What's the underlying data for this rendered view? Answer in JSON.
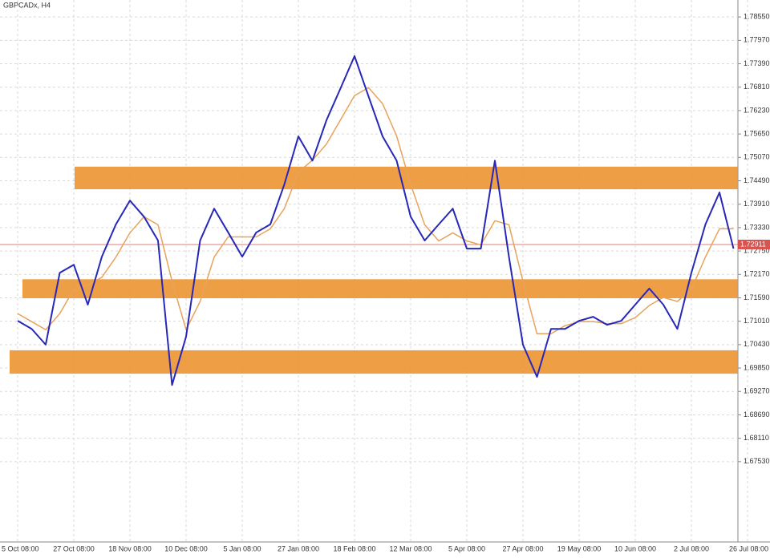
{
  "chart_data": {
    "type": "line",
    "title": "GBPCADx, H4",
    "categories": [
      "5 Oct 08:00",
      null,
      null,
      null,
      "27 Oct 08:00",
      null,
      null,
      null,
      "18 Nov 08:00",
      null,
      null,
      null,
      "10 Dec 08:00",
      null,
      null,
      null,
      "5 Jan 08:00",
      null,
      null,
      null,
      "27 Jan 08:00",
      null,
      null,
      null,
      "18 Feb 08:00",
      null,
      null,
      null,
      "12 Mar 08:00",
      null,
      null,
      null,
      "5 Apr 08:00",
      null,
      null,
      null,
      "27 Apr 08:00",
      null,
      null,
      null,
      "19 May 08:00",
      null,
      null,
      null,
      "10 Jun 08:00",
      null,
      null,
      null,
      "2 Jul 08:00",
      null,
      null,
      null,
      "26 Jul 08:00"
    ],
    "series": [
      {
        "color": "#e8a35a",
        "values": [
          1.712,
          1.71,
          1.708,
          1.712,
          1.718,
          1.719,
          1.721,
          1.726,
          1.732,
          1.736,
          1.734,
          1.72,
          1.708,
          1.715,
          1.726,
          1.731,
          1.731,
          1.731,
          1.733,
          1.738,
          1.747,
          1.75,
          1.754,
          1.76,
          1.766,
          1.768,
          1.764,
          1.756,
          1.744,
          1.734,
          1.73,
          1.732,
          1.73,
          1.729,
          1.735,
          1.734,
          1.72,
          1.707,
          1.707,
          1.709,
          1.71,
          1.71,
          1.7095,
          1.7095,
          1.711,
          1.714,
          1.716,
          1.715,
          1.718,
          1.726,
          1.733,
          1.733,
          null
        ]
      },
      {
        "color": "#2727b8",
        "values": [
          1.7102,
          1.7082,
          1.7043,
          1.7221,
          1.7241,
          1.7142,
          1.7261,
          1.7341,
          1.74,
          1.736,
          1.7301,
          1.6943,
          1.7063,
          1.7301,
          1.738,
          1.7321,
          1.7261,
          1.7321,
          1.7341,
          1.744,
          1.7559,
          1.7499,
          1.7599,
          1.7678,
          1.7758,
          1.7658,
          1.7559,
          1.7499,
          1.736,
          1.7301,
          1.7341,
          1.738,
          1.7281,
          1.7281,
          1.7499,
          1.7261,
          1.7043,
          1.6963,
          1.7082,
          1.7082,
          1.7102,
          1.7112,
          1.7092,
          1.7102,
          1.7142,
          1.7182,
          1.7142,
          1.7082,
          1.7221,
          1.7341,
          1.742,
          1.7281,
          null
        ]
      }
    ],
    "ylim": [
      1.6554,
      1.7897
    ],
    "yticks": [
      {
        "value": 1.7855,
        "label": "1.78550"
      },
      {
        "value": 1.7797,
        "label": "1.77970"
      },
      {
        "value": 1.7739,
        "label": "1.77390"
      },
      {
        "value": 1.7681,
        "label": "1.76810"
      },
      {
        "value": 1.7623,
        "label": "1.76230"
      },
      {
        "value": 1.7565,
        "label": "1.75650"
      },
      {
        "value": 1.7507,
        "label": "1.75070"
      },
      {
        "value": 1.7449,
        "label": "1.74490"
      },
      {
        "value": 1.7391,
        "label": "1.73910"
      },
      {
        "value": 1.7333,
        "label": "1.73330"
      },
      {
        "value": 1.7275,
        "label": "1.72750"
      },
      {
        "value": 1.7217,
        "label": "1.72170"
      },
      {
        "value": 1.7159,
        "label": "1.71590"
      },
      {
        "value": 1.7101,
        "label": "1.71010"
      },
      {
        "value": 1.7043,
        "label": "1.70430"
      },
      {
        "value": 1.6985,
        "label": "1.69850"
      },
      {
        "value": 1.6927,
        "label": "1.69270"
      },
      {
        "value": 1.6869,
        "label": "1.68690"
      },
      {
        "value": 1.6811,
        "label": "1.68110"
      },
      {
        "value": 1.6753,
        "label": "1.67530"
      }
    ],
    "zones": [
      {
        "low": 1.7428,
        "high": 1.7484,
        "color": "#ec9430"
      },
      {
        "low": 1.7158,
        "high": 1.7205,
        "color": "#ec9430"
      },
      {
        "low": 1.6971,
        "high": 1.7029,
        "color": "#ec9430"
      }
    ],
    "last_price": {
      "value": 1.72911,
      "label": "1.72911",
      "color": "#d9534f"
    },
    "grid": true
  }
}
